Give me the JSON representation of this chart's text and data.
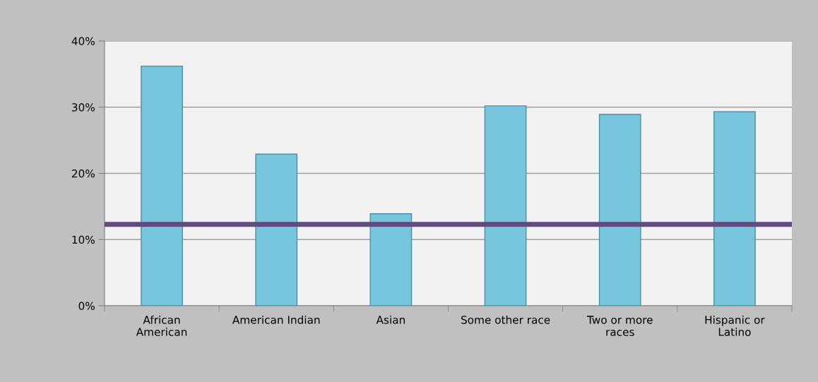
{
  "chart_data": {
    "type": "bar",
    "categories": [
      "African\nAmerican",
      "American Indian",
      "Asian",
      "Some other race",
      "Two or more\nraces",
      "Hispanic or\nLatino"
    ],
    "values": [
      36.2,
      22.9,
      13.9,
      30.2,
      28.9,
      29.3
    ],
    "color": "#77c6de",
    "ylim": [
      0,
      40
    ],
    "yticks": [
      {
        "value": 0,
        "label": "0%"
      },
      {
        "value": 10,
        "label": "10%"
      },
      {
        "value": 20,
        "label": "20%"
      },
      {
        "value": 30,
        "label": "30%"
      },
      {
        "value": 40,
        "label": "40%"
      }
    ],
    "grid": "y",
    "ref_lines": [
      {
        "axis": "y",
        "value": 12.3,
        "color": "#5f4b7e",
        "line_style": "solid"
      }
    ]
  }
}
